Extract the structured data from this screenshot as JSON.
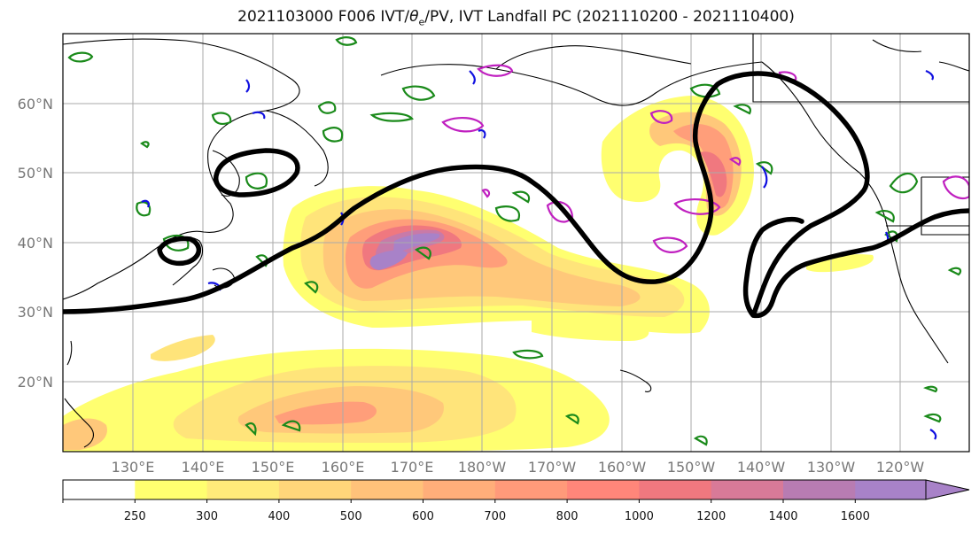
{
  "title": {
    "prefix": "2021103000 F006 IVT/",
    "theta": "θ",
    "sub": "e",
    "suffix": "/PV, IVT Landfall PC (2021110200 - 2021110400)"
  },
  "map": {
    "lat_labels": [
      "60°N",
      "50°N",
      "40°N",
      "30°N",
      "20°N"
    ],
    "lon_labels": [
      "130°E",
      "140°E",
      "150°E",
      "160°E",
      "170°E",
      "180°W",
      "170°W",
      "160°W",
      "150°W",
      "140°W",
      "130°W",
      "120°W"
    ],
    "gridlines": true,
    "colors": {
      "landfall_pc": "#000000",
      "theta_e_contour": "#1a8a1a",
      "pv_contour_magenta": "#c020c0",
      "pv_contour_blue": "#1010e0",
      "coastline": "#000000"
    }
  },
  "colorbar": {
    "labels": [
      "250",
      "300",
      "400",
      "500",
      "600",
      "700",
      "800",
      "1000",
      "1200",
      "1400",
      "1600"
    ],
    "colors": [
      "#ffff70",
      "#ffeb7a",
      "#ffd67a",
      "#ffc27a",
      "#ffae7a",
      "#ff9a7a",
      "#ff867a",
      "#f0787f",
      "#d87a98",
      "#b87cb2",
      "#a882c8"
    ],
    "extend": "max"
  }
}
